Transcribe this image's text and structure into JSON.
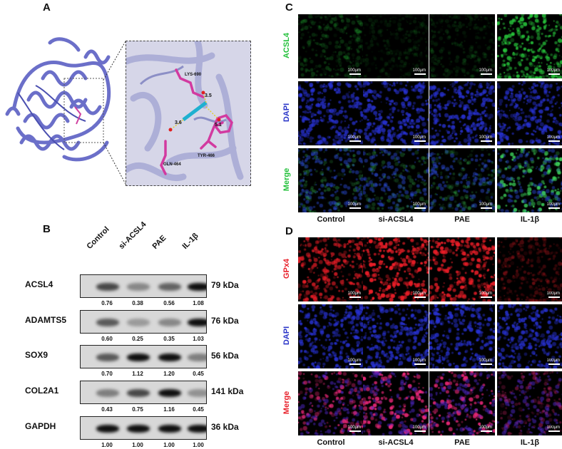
{
  "panel_a": {
    "letter": "A",
    "residues": [
      "LYS-690",
      "GLN-464",
      "TYR-466"
    ],
    "distances": [
      "3.5",
      "3.6",
      "5.1"
    ]
  },
  "panel_b": {
    "letter": "B",
    "columns": [
      "Control",
      "si-ACSL4",
      "PAE",
      "IL-1β"
    ],
    "rows": [
      {
        "protein": "ACSL4",
        "kda": "79 kDa",
        "values": [
          "0.76",
          "0.38",
          "0.56",
          "1.08"
        ],
        "levels": [
          0.7,
          0.35,
          0.55,
          1.0
        ]
      },
      {
        "protein": "ADAMTS5",
        "kda": "76 kDa",
        "values": [
          "0.60",
          "0.25",
          "0.35",
          "1.03"
        ],
        "levels": [
          0.6,
          0.25,
          0.35,
          1.0
        ]
      },
      {
        "protein": "SOX9",
        "kda": "56 kDa",
        "values": [
          "0.70",
          "1.12",
          "1.20",
          "0.45"
        ],
        "levels": [
          0.6,
          1.0,
          1.0,
          0.4
        ]
      },
      {
        "protein": "COL2A1",
        "kda": "141 kDa",
        "values": [
          "0.43",
          "0.75",
          "1.16",
          "0.45"
        ],
        "levels": [
          0.4,
          0.7,
          1.0,
          0.3
        ]
      },
      {
        "protein": "GAPDH",
        "kda": "36 kDa",
        "values": [
          "1.00",
          "1.00",
          "1.00",
          "1.00"
        ],
        "levels": [
          1.0,
          1.0,
          1.0,
          1.0
        ]
      }
    ]
  },
  "panel_c": {
    "letter": "C",
    "rows": [
      {
        "label": "ACSL4",
        "color": "#22c03a"
      },
      {
        "label": "DAPI",
        "color": "#2a35c8"
      },
      {
        "label": "Merge",
        "color": "#22c03a"
      }
    ],
    "columns": [
      "Control",
      "si-ACSL4",
      "PAE",
      "IL-1β"
    ],
    "scale_label": "100μm"
  },
  "panel_d": {
    "letter": "D",
    "rows": [
      {
        "label": "GPx4",
        "color": "#e8202a"
      },
      {
        "label": "DAPI",
        "color": "#2a35c8"
      },
      {
        "label": "Merge",
        "color": "#e8202a"
      }
    ],
    "columns": [
      "Control",
      "si-ACSL4",
      "PAE",
      "IL-1β"
    ],
    "scale_label": "100μm"
  }
}
